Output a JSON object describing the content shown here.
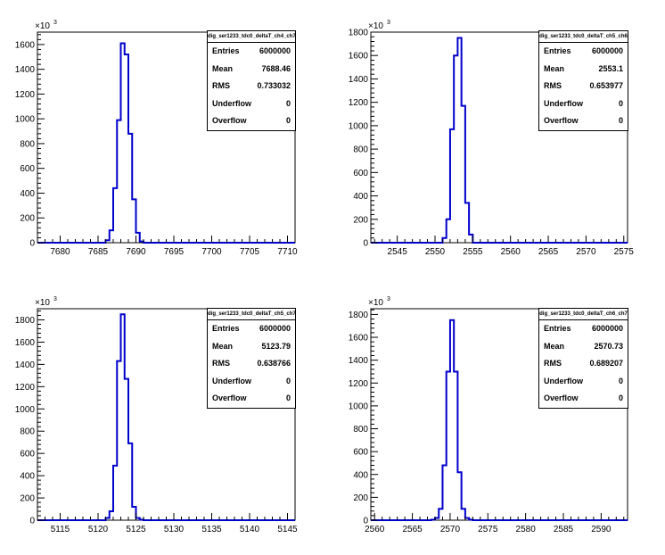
{
  "colors": {
    "histogram": "#0000cc",
    "axis": "#000000",
    "background": "#ffffff"
  },
  "chart_data": [
    {
      "type": "bar",
      "title": "dig_ser1233_tdc0_deltaT_ch4_ch7",
      "y_multiplier": "×10",
      "y_multiplier_exp": "3",
      "xlim": [
        7677,
        7711
      ],
      "ylim": [
        0,
        1700
      ],
      "xticks": [
        7680,
        7685,
        7690,
        7695,
        7700,
        7705,
        7710
      ],
      "yticks": [
        0,
        200,
        400,
        600,
        800,
        1000,
        1200,
        1400,
        1600
      ],
      "bin_edges": [
        7686,
        7686.5,
        7687,
        7687.5,
        7688,
        7688.5,
        7689,
        7689.5,
        7690,
        7690.5,
        7691
      ],
      "counts": [
        20,
        100,
        440,
        990,
        1610,
        1520,
        880,
        350,
        80,
        10
      ],
      "stats": [
        {
          "label": "Entries",
          "value": "6000000"
        },
        {
          "label": "Mean",
          "value": "7688.46"
        },
        {
          "label": "RMS",
          "value": "0.733032"
        },
        {
          "label": "Underflow",
          "value": "0"
        },
        {
          "label": "Overflow",
          "value": "0"
        }
      ]
    },
    {
      "type": "bar",
      "title": "dig_ser1233_tdc0_deltaT_ch5_ch6",
      "y_multiplier": "×10",
      "y_multiplier_exp": "3",
      "xlim": [
        2541.5,
        2575.5
      ],
      "ylim": [
        0,
        1800
      ],
      "xticks": [
        2545,
        2550,
        2555,
        2560,
        2565,
        2570,
        2575
      ],
      "yticks": [
        0,
        200,
        400,
        600,
        800,
        1000,
        1200,
        1400,
        1600,
        1800
      ],
      "bin_edges": [
        2551,
        2551.5,
        2552,
        2552.5,
        2553,
        2553.5,
        2554,
        2554.5,
        2555
      ],
      "counts": [
        40,
        200,
        970,
        1600,
        1750,
        1170,
        340,
        70
      ],
      "stats": [
        {
          "label": "Entries",
          "value": "6000000"
        },
        {
          "label": "Mean",
          "value": "2553.1"
        },
        {
          "label": "RMS",
          "value": "0.653977"
        },
        {
          "label": "Underflow",
          "value": "0"
        },
        {
          "label": "Overflow",
          "value": "0"
        }
      ]
    },
    {
      "type": "bar",
      "title": "dig_ser1233_tdc0_deltaT_ch5_ch7",
      "y_multiplier": "×10",
      "y_multiplier_exp": "3",
      "xlim": [
        5112,
        5146
      ],
      "ylim": [
        0,
        1900
      ],
      "xticks": [
        5115,
        5120,
        5125,
        5130,
        5135,
        5140,
        5145
      ],
      "yticks": [
        0,
        200,
        400,
        600,
        800,
        1000,
        1200,
        1400,
        1600,
        1800
      ],
      "bin_edges": [
        5121,
        5121.5,
        5122,
        5122.5,
        5123,
        5123.5,
        5124,
        5124.5,
        5125,
        5125.5,
        5126
      ],
      "counts": [
        20,
        80,
        490,
        1430,
        1850,
        1270,
        690,
        120,
        20,
        5
      ],
      "stats": [
        {
          "label": "Entries",
          "value": "6000000"
        },
        {
          "label": "Mean",
          "value": "5123.79"
        },
        {
          "label": "RMS",
          "value": "0.638766"
        },
        {
          "label": "Underflow",
          "value": "0"
        },
        {
          "label": "Overflow",
          "value": "0"
        }
      ]
    },
    {
      "type": "bar",
      "title": "dig_ser1233_tdc0_deltaT_ch6_ch7",
      "y_multiplier": "×10",
      "y_multiplier_exp": "3",
      "xlim": [
        2559.5,
        2593.5
      ],
      "ylim": [
        0,
        1850
      ],
      "xticks": [
        2560,
        2565,
        2570,
        2575,
        2580,
        2585,
        2590
      ],
      "yticks": [
        0,
        200,
        400,
        600,
        800,
        1000,
        1200,
        1400,
        1600,
        1800
      ],
      "bin_edges": [
        2567.5,
        2568,
        2568.5,
        2569,
        2569.5,
        2570,
        2570.5,
        2571,
        2571.5,
        2572,
        2572.5,
        2573
      ],
      "counts": [
        5,
        20,
        100,
        480,
        1300,
        1750,
        1300,
        420,
        100,
        20,
        5
      ],
      "stats": [
        {
          "label": "Entries",
          "value": "6000000"
        },
        {
          "label": "Mean",
          "value": "2570.73"
        },
        {
          "label": "RMS",
          "value": "0.689207"
        },
        {
          "label": "Underflow",
          "value": "0"
        },
        {
          "label": "Overflow",
          "value": "0"
        }
      ]
    }
  ]
}
